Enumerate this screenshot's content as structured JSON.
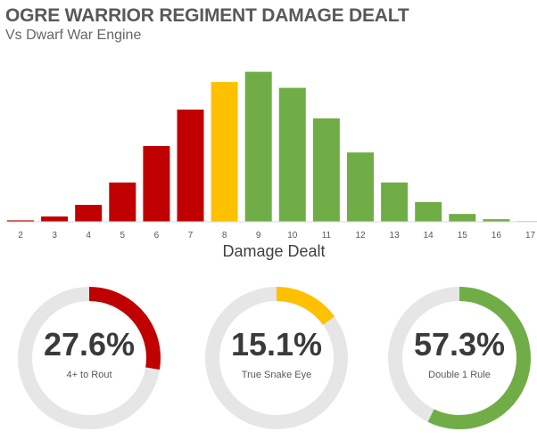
{
  "chart_data": {
    "type": "bar",
    "title": "OGRE WARRIOR REGIMENT DAMAGE DEALT",
    "subtitle": "Vs Dwarf War Engine",
    "xlabel": "Damage Dealt",
    "ylabel": "",
    "categories": [
      "2",
      "3",
      "4",
      "5",
      "6",
      "7",
      "8",
      "9",
      "10",
      "11",
      "12",
      "13",
      "14",
      "15",
      "16",
      "17"
    ],
    "values": [
      0.5,
      1.8,
      5.8,
      13.5,
      26.0,
      38.5,
      48.0,
      51.5,
      46.0,
      35.5,
      23.8,
      13.5,
      6.8,
      2.7,
      0.9,
      0.2
    ],
    "colors": [
      "#c00000",
      "#c00000",
      "#c00000",
      "#c00000",
      "#c00000",
      "#c00000",
      "#ffc000",
      "#70ad47",
      "#70ad47",
      "#70ad47",
      "#70ad47",
      "#70ad47",
      "#70ad47",
      "#70ad47",
      "#70ad47",
      "#70ad47"
    ],
    "ylim": [
      0,
      52
    ],
    "grid": false,
    "legend": "none",
    "donuts": [
      {
        "percent_text": "27.6%",
        "value": 27.6,
        "label": "4+ to Rout",
        "color": "#c00000"
      },
      {
        "percent_text": "15.1%",
        "value": 15.1,
        "label": "True Snake Eye",
        "color": "#ffc000"
      },
      {
        "percent_text": "57.3%",
        "value": 57.3,
        "label": "Double 1 Rule",
        "color": "#70ad47"
      }
    ],
    "track_color": "#e6e6e6"
  }
}
